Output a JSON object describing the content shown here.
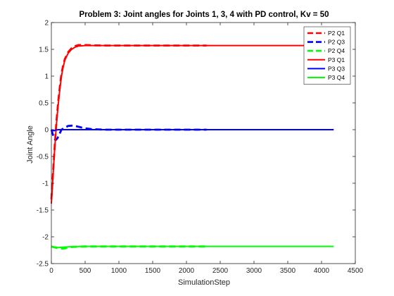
{
  "chart_data": {
    "type": "line",
    "title": "Problem 3: Joint angles for Joints 1, 3, 4 with PD control, Kv = 50",
    "xlabel": "SimulationStep",
    "ylabel": "Joint Angle",
    "xlim": [
      0,
      4500
    ],
    "ylim": [
      -2.5,
      2
    ],
    "xticks": [
      0,
      500,
      1000,
      1500,
      2000,
      2500,
      3000,
      3500,
      4000,
      4500
    ],
    "yticks": [
      -2.5,
      -2,
      -1.5,
      -1,
      -0.5,
      0,
      0.5,
      1,
      1.5,
      2
    ],
    "xtick_labels": [
      "0",
      "500",
      "1000",
      "1500",
      "2000",
      "2500",
      "3000",
      "3500",
      "4000",
      "4500"
    ],
    "ytick_labels": [
      "-2.5",
      "-2",
      "-1.5",
      "-1",
      "-0.5",
      "0",
      "0.5",
      "1",
      "1.5",
      "2"
    ],
    "grid": false,
    "legend_position": "top-right",
    "series": [
      {
        "name": "P2 Q1",
        "color": "#ff0000",
        "style": "dashed",
        "x": [
          0,
          25,
          50,
          75,
          100,
          125,
          150,
          175,
          200,
          250,
          300,
          350,
          400,
          500,
          600,
          800,
          1000,
          1500,
          2000,
          2300
        ],
        "y": [
          -1.3,
          -0.8,
          -0.3,
          0.15,
          0.5,
          0.8,
          1.05,
          1.2,
          1.32,
          1.45,
          1.52,
          1.56,
          1.58,
          1.58,
          1.575,
          1.571,
          1.571,
          1.571,
          1.571,
          1.571
        ]
      },
      {
        "name": "P2 Q3",
        "color": "#0000ff",
        "style": "dashed",
        "x": [
          0,
          30,
          60,
          90,
          120,
          150,
          200,
          250,
          300,
          350,
          400,
          450,
          500,
          600,
          700,
          800,
          1000,
          1500,
          2000,
          2300
        ],
        "y": [
          0,
          -0.12,
          -0.2,
          -0.16,
          -0.08,
          0,
          0.04,
          0.07,
          0.075,
          0.07,
          0.055,
          0.04,
          0.025,
          0.01,
          0.005,
          0,
          0,
          0,
          0,
          0
        ]
      },
      {
        "name": "P2 Q4",
        "color": "#00ff00",
        "style": "dashed",
        "x": [
          0,
          50,
          100,
          150,
          200,
          250,
          300,
          400,
          500,
          700,
          1000,
          1500,
          2000,
          2300
        ],
        "y": [
          -2.18,
          -2.2,
          -2.21,
          -2.22,
          -2.215,
          -2.2,
          -2.19,
          -2.185,
          -2.18,
          -2.18,
          -2.18,
          -2.18,
          -2.18,
          -2.18
        ]
      },
      {
        "name": "P3 Q1",
        "color": "#ff0000",
        "style": "solid",
        "x": [
          0,
          25,
          50,
          75,
          100,
          125,
          150,
          175,
          200,
          250,
          300,
          350,
          400,
          500,
          600,
          800,
          1000,
          1500,
          2000,
          3000,
          4180
        ],
        "y": [
          -1.38,
          -0.85,
          -0.35,
          0.1,
          0.45,
          0.75,
          1.0,
          1.17,
          1.3,
          1.43,
          1.5,
          1.54,
          1.56,
          1.57,
          1.571,
          1.571,
          1.571,
          1.571,
          1.571,
          1.571,
          1.571
        ]
      },
      {
        "name": "P3 Q3",
        "color": "#0000ff",
        "style": "solid",
        "x": [
          0,
          20,
          40,
          60,
          100,
          200,
          500,
          1000,
          2000,
          3000,
          4180
        ],
        "y": [
          0,
          -0.01,
          -0.02,
          -0.01,
          0,
          0,
          0,
          0,
          0,
          0,
          0
        ]
      },
      {
        "name": "P3 Q4",
        "color": "#00ff00",
        "style": "solid",
        "x": [
          0,
          50,
          100,
          150,
          200,
          300,
          500,
          1000,
          2000,
          3000,
          4180
        ],
        "y": [
          -2.18,
          -2.19,
          -2.2,
          -2.195,
          -2.19,
          -2.185,
          -2.18,
          -2.18,
          -2.18,
          -2.18,
          -2.18
        ]
      }
    ]
  }
}
